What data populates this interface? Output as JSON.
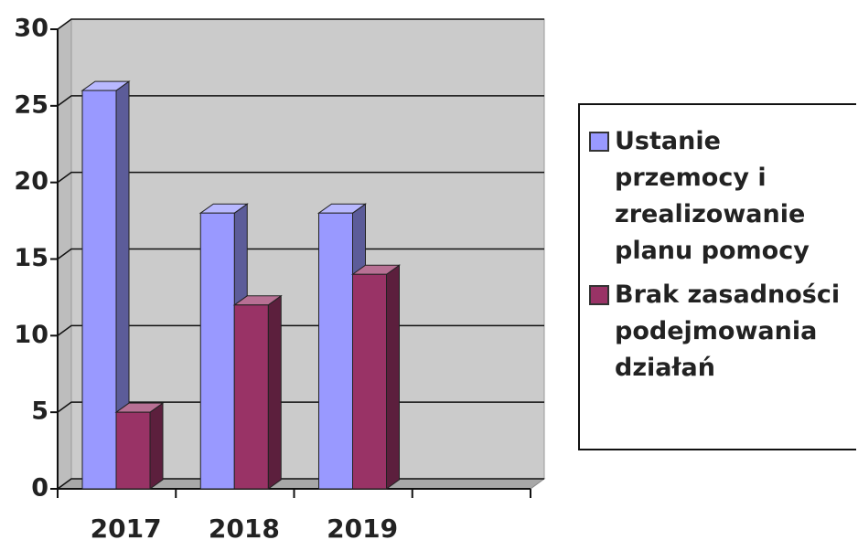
{
  "chart_data": {
    "type": "bar3d",
    "categories": [
      "2017",
      "2018",
      "2019",
      null
    ],
    "series": [
      {
        "name": "Ustanie przemocy i zrealizowanie planu pomocy",
        "color": "#9999ff",
        "values": [
          26,
          18,
          18,
          null
        ]
      },
      {
        "name": "Brak zasadności podejmowania działań",
        "color": "#993366",
        "values": [
          5,
          12,
          14,
          null
        ]
      }
    ],
    "ylim": [
      0,
      30
    ],
    "yticks": [
      0,
      5,
      10,
      15,
      20,
      25,
      30
    ],
    "grid": true,
    "legend": "right"
  }
}
